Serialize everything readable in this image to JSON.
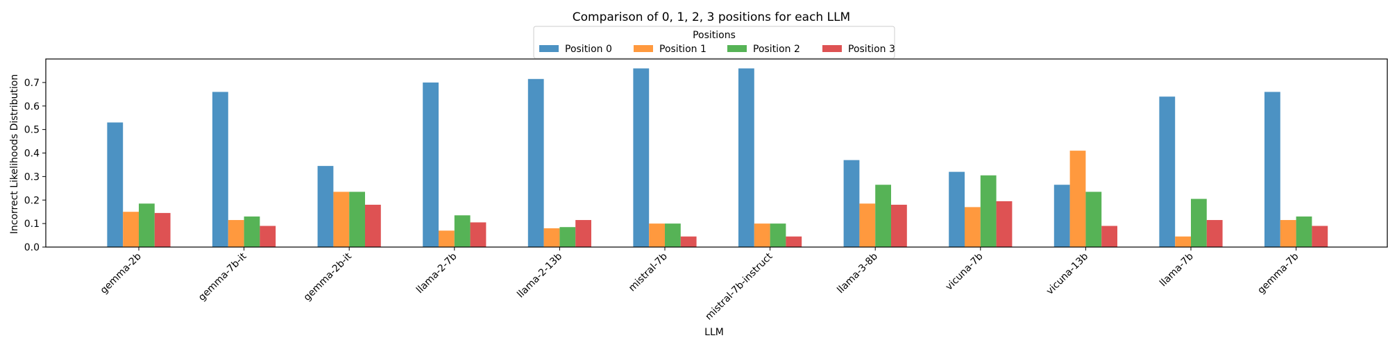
{
  "chart_data": {
    "type": "bar",
    "title": "Comparison of 0, 1, 2, 3 positions for each LLM",
    "xlabel": "LLM",
    "ylabel": "Incorrect Likelihoods Distribution",
    "ylim": [
      0,
      0.8
    ],
    "yticks": [
      "0.0",
      "0.1",
      "0.2",
      "0.3",
      "0.4",
      "0.5",
      "0.6",
      "0.7"
    ],
    "grid": false,
    "legend": {
      "title": "Positions",
      "placement": "top-center",
      "ncol": 4
    },
    "categories": [
      "gemma-2b",
      "gemma-7b-it",
      "gemma-2b-it",
      "llama-2-7b",
      "llama-2-13b",
      "mistral-7b",
      "mistral-7b-instruct",
      "llama-3-8b",
      "vicuna-7b",
      "vicuna-13b",
      "llama-7b",
      "gemma-7b"
    ],
    "series": [
      {
        "name": "Position 0",
        "color": "#4c92c3",
        "values": [
          0.53,
          0.66,
          0.345,
          0.7,
          0.715,
          0.76,
          0.76,
          0.37,
          0.32,
          0.265,
          0.64,
          0.66
        ]
      },
      {
        "name": "Position 1",
        "color": "#ff993e",
        "values": [
          0.15,
          0.115,
          0.235,
          0.07,
          0.08,
          0.1,
          0.1,
          0.185,
          0.17,
          0.41,
          0.045,
          0.115
        ]
      },
      {
        "name": "Position 2",
        "color": "#56b356",
        "values": [
          0.185,
          0.13,
          0.235,
          0.135,
          0.085,
          0.1,
          0.1,
          0.265,
          0.305,
          0.235,
          0.205,
          0.13
        ]
      },
      {
        "name": "Position 3",
        "color": "#de5253",
        "values": [
          0.145,
          0.09,
          0.18,
          0.105,
          0.115,
          0.045,
          0.045,
          0.18,
          0.195,
          0.09,
          0.115,
          0.09
        ]
      }
    ]
  }
}
